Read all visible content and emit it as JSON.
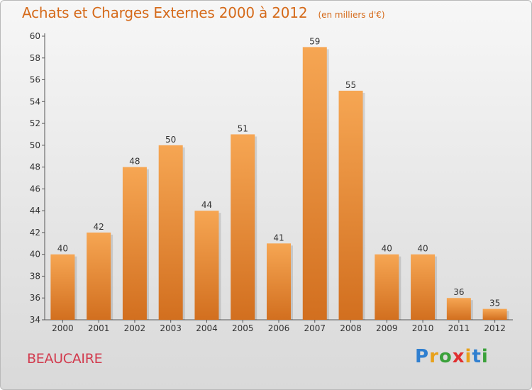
{
  "header": {
    "title": "Achats et Charges Externes 2000 à 2012",
    "subtitle": "(en milliers d'€)"
  },
  "place_name": "BEAUCAIRE",
  "logo": {
    "text": "Proxiti",
    "letter_colors": [
      "#2f7fd0",
      "#e8a11a",
      "#3aa13a",
      "#e02f2f",
      "#e8a11a",
      "#2f7fd0",
      "#3aa13a"
    ]
  },
  "colors": {
    "bar_top": "#f6a653",
    "bar_bottom": "#d26f1f",
    "title": "#d56a1a",
    "place": "#d23b4e"
  },
  "chart_data": {
    "type": "bar",
    "title": "Achats et Charges Externes 2000 à 2012",
    "subtitle": "(en milliers d'€)",
    "categories": [
      "2000",
      "2001",
      "2002",
      "2003",
      "2004",
      "2005",
      "2006",
      "2007",
      "2008",
      "2009",
      "2010",
      "2011",
      "2012"
    ],
    "values": [
      40,
      42,
      48,
      50,
      44,
      51,
      41,
      59,
      55,
      40,
      40,
      36,
      35
    ],
    "ylim": [
      34,
      60
    ],
    "yticks": [
      34,
      36,
      38,
      40,
      42,
      44,
      46,
      48,
      50,
      52,
      54,
      56,
      58,
      60
    ],
    "grid": false,
    "legend": "none"
  }
}
